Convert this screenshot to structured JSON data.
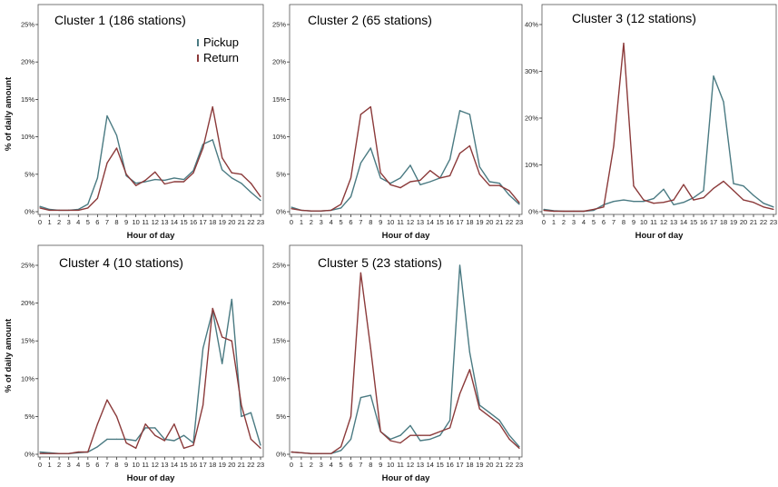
{
  "chart_data": [
    {
      "type": "line",
      "title": "Cluster 1 (186 stations)",
      "xlabel": "Hour of day",
      "ylabel": "% of daily amount",
      "x": [
        0,
        1,
        2,
        3,
        4,
        5,
        6,
        7,
        8,
        9,
        10,
        11,
        12,
        13,
        14,
        15,
        16,
        17,
        18,
        19,
        20,
        21,
        22,
        23
      ],
      "xticklabels": [
        "0",
        "1",
        "2",
        "3",
        "4",
        "5",
        "6",
        "7",
        "8",
        "9",
        "10",
        "11",
        "12",
        "13",
        "14",
        "15",
        "16",
        "17",
        "18",
        "19",
        "20",
        "21",
        "22",
        "23"
      ],
      "ylim": [
        0,
        25
      ],
      "yticks": [
        0,
        5,
        10,
        15,
        20,
        25
      ],
      "yticklabels": [
        "0%",
        "5%",
        "10%",
        "15%",
        "20%",
        "25%"
      ],
      "legend": "top-left",
      "series": [
        {
          "name": "Pickup",
          "color": "#4a7a82",
          "values": [
            0.7,
            0.3,
            0.2,
            0.2,
            0.3,
            1.0,
            4.5,
            12.8,
            10.2,
            4.8,
            3.8,
            4.0,
            4.3,
            4.2,
            4.5,
            4.3,
            5.5,
            9.0,
            9.6,
            5.6,
            4.5,
            3.8,
            2.6,
            1.5
          ]
        },
        {
          "name": "Return",
          "color": "#8b3a3a",
          "values": [
            0.5,
            0.2,
            0.2,
            0.2,
            0.2,
            0.5,
            1.8,
            6.5,
            8.5,
            5.0,
            3.5,
            4.2,
            5.3,
            3.7,
            4.0,
            4.0,
            5.2,
            8.5,
            14.0,
            7.2,
            5.2,
            5.0,
            3.8,
            2.0
          ]
        }
      ]
    },
    {
      "type": "line",
      "title": "Cluster 2 (65 stations)",
      "xlabel": "Hour of day",
      "x": [
        0,
        1,
        2,
        3,
        4,
        5,
        6,
        7,
        8,
        9,
        10,
        11,
        12,
        13,
        14,
        15,
        16,
        17,
        18,
        19,
        20,
        21,
        22,
        23
      ],
      "xticklabels": [
        "0",
        "1",
        "2",
        "3",
        "4",
        "5",
        "6",
        "7",
        "8",
        "9",
        "10",
        "11",
        "12",
        "13",
        "14",
        "15",
        "16",
        "17",
        "18",
        "19",
        "20",
        "21",
        "22",
        "23"
      ],
      "ylim": [
        0,
        25
      ],
      "yticks": [
        0,
        5,
        10,
        15,
        20,
        25
      ],
      "yticklabels": [
        "0%",
        "5%",
        "10%",
        "15%",
        "20%",
        "25%"
      ],
      "series": [
        {
          "name": "Pickup",
          "color": "#4a7a82",
          "values": [
            0.6,
            0.2,
            0.1,
            0.1,
            0.2,
            0.5,
            2.0,
            6.5,
            8.5,
            4.5,
            3.8,
            4.5,
            6.2,
            3.6,
            4.0,
            4.5,
            7.0,
            13.5,
            13.0,
            6.0,
            4.0,
            3.8,
            2.2,
            1.0
          ]
        },
        {
          "name": "Return",
          "color": "#8b3a3a",
          "values": [
            0.4,
            0.2,
            0.1,
            0.1,
            0.2,
            1.0,
            4.5,
            13.0,
            14.0,
            5.2,
            3.6,
            3.2,
            4.0,
            4.2,
            5.5,
            4.5,
            4.8,
            7.8,
            8.8,
            5.0,
            3.5,
            3.5,
            2.8,
            1.2
          ]
        }
      ]
    },
    {
      "type": "line",
      "title": "Cluster 3 (12 stations)",
      "xlabel": "Hour of day",
      "x": [
        0,
        1,
        2,
        3,
        4,
        5,
        6,
        7,
        8,
        9,
        10,
        11,
        12,
        13,
        14,
        15,
        16,
        17,
        18,
        19,
        20,
        21,
        22,
        23
      ],
      "xticklabels": [
        "0",
        "1",
        "2",
        "3",
        "4",
        "5",
        "6",
        "7",
        "8",
        "9",
        "10",
        "11",
        "12",
        "13",
        "14",
        "15",
        "16",
        "17",
        "18",
        "19",
        "20",
        "21",
        "22",
        "23"
      ],
      "ylim": [
        0,
        40
      ],
      "yticks": [
        0,
        10,
        20,
        30,
        40
      ],
      "yticklabels": [
        "0%",
        "10%",
        "20%",
        "30%",
        "40%"
      ],
      "series": [
        {
          "name": "Pickup",
          "color": "#4a7a82",
          "values": [
            0.5,
            0.2,
            0.1,
            0.1,
            0.1,
            0.3,
            1.5,
            2.2,
            2.5,
            2.2,
            2.2,
            2.8,
            4.8,
            1.5,
            2.0,
            3.0,
            4.5,
            29.0,
            23.5,
            6.0,
            5.5,
            3.5,
            1.8,
            1.0
          ]
        },
        {
          "name": "Return",
          "color": "#8b3a3a",
          "values": [
            0.3,
            0.1,
            0.1,
            0.1,
            0.1,
            0.5,
            1.0,
            14.0,
            36.0,
            5.5,
            2.5,
            1.8,
            2.0,
            2.5,
            5.8,
            2.5,
            3.0,
            5.0,
            6.5,
            4.5,
            2.5,
            2.0,
            1.0,
            0.5
          ]
        }
      ]
    },
    {
      "type": "line",
      "title": "Cluster 4 (10 stations)",
      "xlabel": "Hour of day",
      "ylabel": "% of daily amount",
      "x": [
        0,
        1,
        2,
        3,
        4,
        5,
        6,
        7,
        8,
        9,
        10,
        11,
        12,
        13,
        14,
        15,
        16,
        17,
        18,
        19,
        20,
        21,
        22,
        23
      ],
      "xticklabels": [
        "0",
        "1",
        "2",
        "3",
        "4",
        "5",
        "6",
        "7",
        "8",
        "9",
        "10",
        "11",
        "12",
        "13",
        "14",
        "15",
        "16",
        "17",
        "18",
        "19",
        "20",
        "21",
        "22",
        "23"
      ],
      "ylim": [
        0,
        25
      ],
      "yticks": [
        0,
        5,
        10,
        15,
        20,
        25
      ],
      "yticklabels": [
        "0%",
        "5%",
        "10%",
        "15%",
        "20%",
        "25%"
      ],
      "series": [
        {
          "name": "Pickup",
          "color": "#4a7a82",
          "values": [
            0.3,
            0.2,
            0.1,
            0.1,
            0.2,
            0.3,
            1.0,
            2.0,
            2.0,
            2.0,
            1.8,
            3.5,
            3.5,
            2.0,
            1.8,
            2.5,
            1.5,
            14.0,
            19.0,
            12.0,
            20.5,
            5.0,
            5.5,
            1.2
          ]
        },
        {
          "name": "Return",
          "color": "#8b3a3a",
          "values": [
            0.1,
            0.1,
            0.1,
            0.1,
            0.3,
            0.3,
            4.0,
            7.2,
            5.0,
            1.5,
            0.8,
            4.0,
            2.5,
            1.8,
            4.0,
            0.8,
            1.2,
            6.5,
            19.3,
            15.5,
            15.0,
            6.5,
            2.0,
            0.8
          ]
        }
      ]
    },
    {
      "type": "line",
      "title": "Cluster 5 (23 stations)",
      "xlabel": "Hour of day",
      "x": [
        0,
        1,
        2,
        3,
        4,
        5,
        6,
        7,
        8,
        9,
        10,
        11,
        12,
        13,
        14,
        15,
        16,
        17,
        18,
        19,
        20,
        21,
        22,
        23
      ],
      "xticklabels": [
        "0",
        "1",
        "2",
        "3",
        "4",
        "5",
        "6",
        "7",
        "8",
        "9",
        "10",
        "11",
        "12",
        "13",
        "14",
        "15",
        "16",
        "17",
        "18",
        "19",
        "20",
        "21",
        "22",
        "23"
      ],
      "ylim": [
        0,
        25
      ],
      "yticks": [
        0,
        5,
        10,
        15,
        20,
        25
      ],
      "yticklabels": [
        "0%",
        "5%",
        "10%",
        "15%",
        "20%",
        "25%"
      ],
      "series": [
        {
          "name": "Pickup",
          "color": "#4a7a82",
          "values": [
            0.3,
            0.2,
            0.1,
            0.1,
            0.1,
            0.5,
            2.0,
            7.5,
            7.8,
            3.0,
            2.0,
            2.5,
            3.8,
            1.8,
            2.0,
            2.5,
            4.5,
            25.0,
            13.5,
            6.5,
            5.5,
            4.5,
            2.5,
            1.0
          ]
        },
        {
          "name": "Return",
          "color": "#8b3a3a",
          "values": [
            0.3,
            0.2,
            0.1,
            0.1,
            0.1,
            1.0,
            5.0,
            24.0,
            14.0,
            3.0,
            1.8,
            1.5,
            2.5,
            2.5,
            2.5,
            3.0,
            3.5,
            8.0,
            11.2,
            6.0,
            5.0,
            4.0,
            2.0,
            0.8
          ]
        }
      ]
    }
  ]
}
